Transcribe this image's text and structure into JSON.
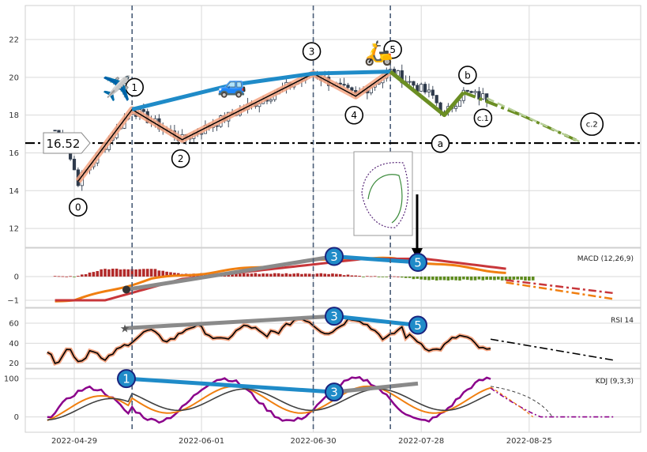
{
  "chart_data": [
    {
      "type": "candlestick",
      "panel": "price",
      "x_ticks": [
        "2022-04-29",
        "2022-06-01",
        "2022-06-30",
        "2022-07-28",
        "2022-08-25"
      ],
      "y_ticks": [
        12,
        14,
        16,
        18,
        20,
        22
      ],
      "ylim": [
        11,
        23.8
      ],
      "support_level": 16.52,
      "support_label": "16.52",
      "wave_points": [
        {
          "label": "0",
          "date": "2022-04-30",
          "value": 14.5
        },
        {
          "label": "1",
          "date": "2022-05-14",
          "value": 18.3
        },
        {
          "label": "2",
          "date": "2022-05-27",
          "value": 16.7
        },
        {
          "label": "3",
          "date": "2022-06-30",
          "value": 20.2
        },
        {
          "label": "4",
          "date": "2022-07-11",
          "value": 19.0
        },
        {
          "label": "5",
          "date": "2022-07-20",
          "value": 20.3
        }
      ],
      "correction_points": [
        {
          "label": "a",
          "date": "2022-08-03",
          "value": 18.0
        },
        {
          "label": "b",
          "date": "2022-08-08",
          "value": 19.2
        },
        {
          "label": "c.1",
          "date": "2022-08-12",
          "value": 18.6
        },
        {
          "label": "c.2",
          "date": "2022-09-07",
          "value": 16.6
        }
      ],
      "trend_line": [
        {
          "date": "2022-05-14",
          "value": 18.3
        },
        {
          "date": "2022-06-09",
          "value": 19.6
        },
        {
          "date": "2022-06-30",
          "value": 20.2
        },
        {
          "date": "2022-07-20",
          "value": 20.3
        }
      ],
      "emoji_markers": [
        {
          "icon": "airplane",
          "glyph": "✈️",
          "date": "2022-05-10",
          "value": 19.4
        },
        {
          "icon": "car",
          "glyph": "🚙",
          "date": "2022-06-09",
          "value": 19.6
        },
        {
          "icon": "scooter",
          "glyph": "🛵",
          "date": "2022-07-17",
          "value": 21.3
        }
      ],
      "vertical_markers": [
        "2022-05-14",
        "2022-06-30",
        "2022-07-20"
      ],
      "colors": {
        "wave_black": "#000000",
        "wave_glow": "#f4a582",
        "trend": "#1f8bc8",
        "correction": "#6b8e23",
        "support": "#000000",
        "up_candle": "#ffffff",
        "down_candle": "#2f3b4c"
      }
    },
    {
      "type": "macd",
      "panel": "macd",
      "label": "MACD (12,26,9)",
      "y_ticks": [
        -1,
        0
      ],
      "ylim": [
        -1.3,
        1.2
      ],
      "divergence_labels": [
        "3",
        "5"
      ],
      "colors": {
        "dif": "#f07f10",
        "dea": "#c8363a",
        "hist_pos": "#b22a2a",
        "hist_neg": "#5e8c1e"
      }
    },
    {
      "type": "line",
      "panel": "rsi",
      "label": "RSI 14",
      "y_ticks": [
        20,
        40,
        60
      ],
      "ylim": [
        15,
        75
      ],
      "divergence_labels": [
        "3",
        "5"
      ],
      "colors": {
        "line": "#000000",
        "glow": "#f4a582"
      }
    },
    {
      "type": "line",
      "panel": "kdj",
      "label": "KDJ (9,3,3)",
      "y_ticks": [
        0,
        100
      ],
      "ylim": [
        -40,
        125
      ],
      "divergence_labels": [
        "1",
        "3"
      ],
      "colors": {
        "k": "#f07f10",
        "d": "#404040",
        "j": "#8b008b"
      }
    }
  ]
}
